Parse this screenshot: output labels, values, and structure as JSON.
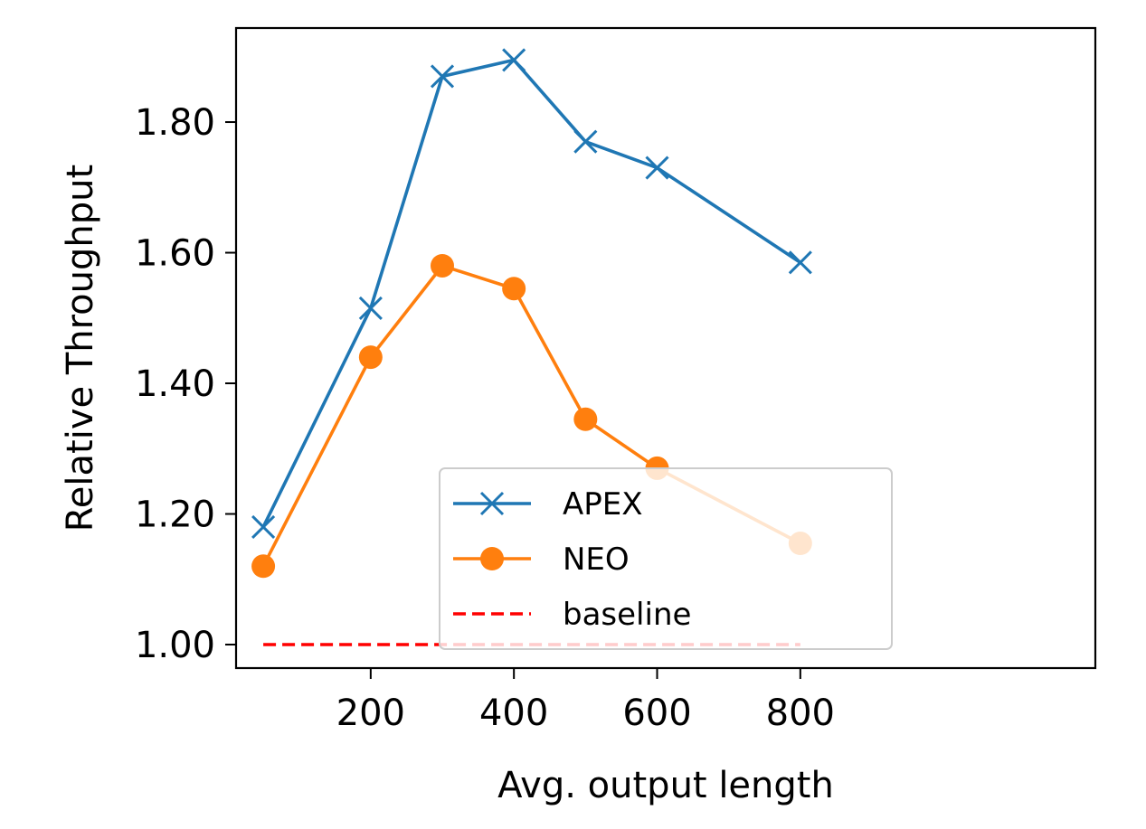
{
  "chart_data": {
    "type": "line",
    "title": "",
    "xlabel": "Avg. output length",
    "ylabel": "Relative Throughput",
    "xlim": [
      12,
      1212
    ],
    "ylim": [
      0.964,
      1.944
    ],
    "xticks": [
      200,
      400,
      600,
      800
    ],
    "xtick_labels": [
      "200",
      "400",
      "600",
      "800"
    ],
    "yticks": [
      1.0,
      1.2,
      1.4,
      1.6,
      1.8
    ],
    "ytick_labels": [
      "1.00",
      "1.20",
      "1.40",
      "1.60",
      "1.80"
    ],
    "grid": false,
    "legend_position": "lower-center",
    "series": [
      {
        "name": "APEX",
        "color": "#1f77b4",
        "marker": "x",
        "linestyle": "solid",
        "x": [
          50,
          200,
          300,
          400,
          500,
          600,
          800
        ],
        "y": [
          1.18,
          1.515,
          1.87,
          1.895,
          1.77,
          1.73,
          1.585
        ]
      },
      {
        "name": "NEO",
        "color": "#ff7f0e",
        "marker": "circle",
        "linestyle": "solid",
        "x": [
          50,
          200,
          300,
          400,
          500,
          600,
          800
        ],
        "y": [
          1.12,
          1.44,
          1.58,
          1.545,
          1.345,
          1.27,
          1.155
        ]
      },
      {
        "name": "baseline",
        "color": "#ff0000",
        "marker": "none",
        "linestyle": "dashed",
        "x": [
          50,
          800
        ],
        "y": [
          1.0,
          1.0
        ]
      }
    ]
  }
}
